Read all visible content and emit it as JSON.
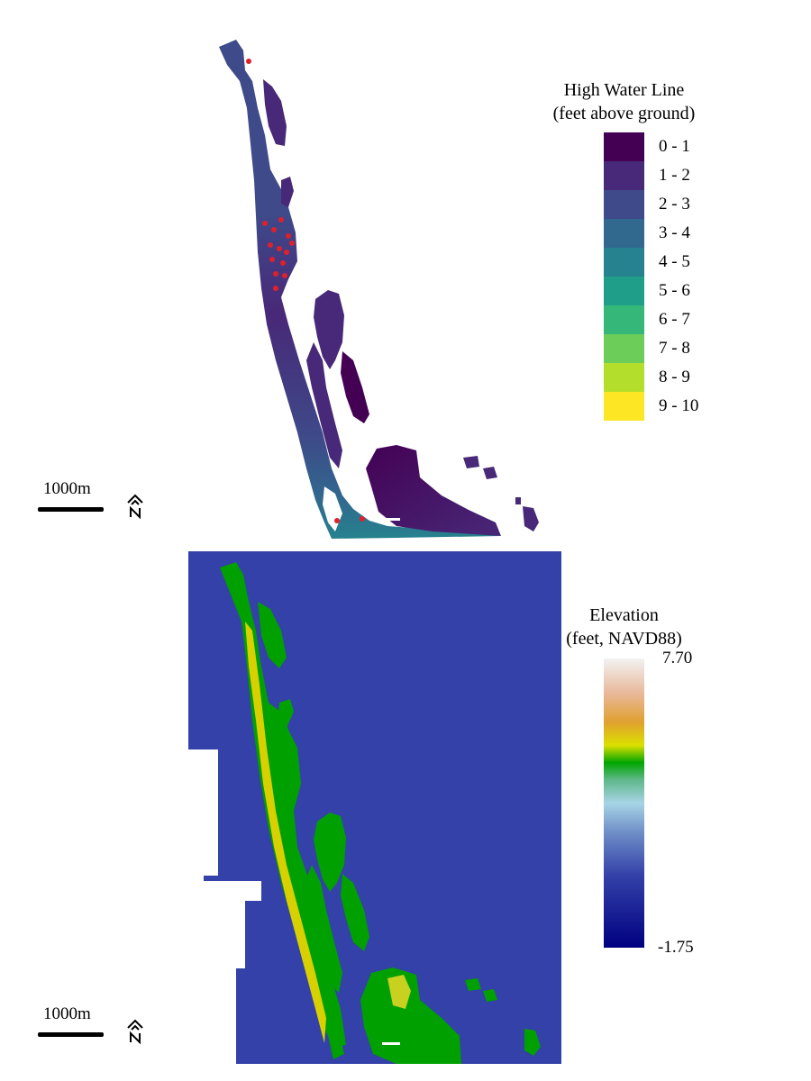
{
  "top_map": {
    "legend": {
      "title_line1": "High Water Line",
      "title_line2": "(feet above ground)",
      "classes": [
        {
          "label": "0 - 1",
          "color": "#440154"
        },
        {
          "label": "1 - 2",
          "color": "#482878"
        },
        {
          "label": "2 - 3",
          "color": "#3E4A89"
        },
        {
          "label": "3 - 4",
          "color": "#31688E"
        },
        {
          "label": "4 - 5",
          "color": "#26828E"
        },
        {
          "label": "5 - 6",
          "color": "#1F9E89"
        },
        {
          "label": "6 - 7",
          "color": "#35B779"
        },
        {
          "label": "7 - 8",
          "color": "#6DCD59"
        },
        {
          "label": "8 - 9",
          "color": "#B4DE2C"
        },
        {
          "label": "9 - 10",
          "color": "#FDE725"
        }
      ]
    },
    "scale_label": "1000m",
    "point_color": "#E0202A"
  },
  "bottom_map": {
    "legend": {
      "title_line1": "Elevation",
      "title_line2": "(feet, NAVD88)",
      "max_label": "7.70",
      "min_label": "-1.75",
      "gradient_colors": [
        "#F2F2F2",
        "#E8B89A",
        "#E0A030",
        "#DCE000",
        "#00A600",
        "#5FB88A",
        "#A8D4E6",
        "#6F8FC7",
        "#3341A8",
        "#000080"
      ]
    },
    "scale_label": "1000m",
    "water_color": "#3341A8",
    "land_color": "#00A000",
    "ridge_color": "#D8D000"
  }
}
